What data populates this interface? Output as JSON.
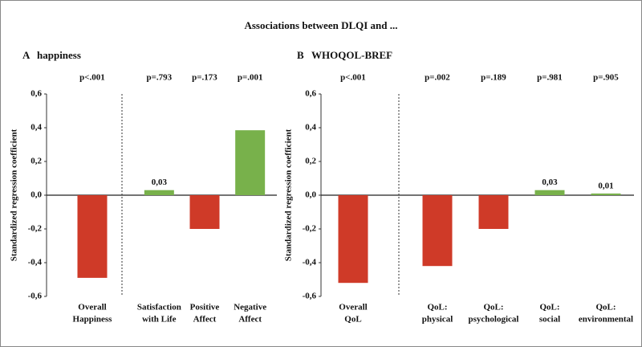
{
  "title": "Associations between DLQI and ...",
  "chart_data": [
    {
      "type": "bar",
      "panel": "A",
      "title": "happiness",
      "ylabel": "Standardized regression coefficient",
      "categories": [
        [
          "Overall",
          "Happiness"
        ],
        [
          "Satisfaction",
          "with Life"
        ],
        [
          "Positive",
          "Affect"
        ],
        [
          "Negative",
          "Affect"
        ]
      ],
      "annotations": [
        "p<.001",
        "p=.793",
        "p=.173",
        "p=.001"
      ],
      "values": [
        -0.49,
        0.03,
        -0.2,
        0.385
      ],
      "value_labels": [
        null,
        "0,03",
        null,
        null
      ],
      "colors": [
        "#cf3a28",
        "#78b14b",
        "#cf3a28",
        "#78b14b"
      ],
      "ylim": [
        -0.6,
        0.6
      ],
      "yticks": [
        {
          "value": -0.6,
          "label": "-0,6"
        },
        {
          "value": -0.4,
          "label": "-0,4"
        },
        {
          "value": -0.2,
          "label": "-0,2"
        },
        {
          "value": 0,
          "label": "0,0"
        },
        {
          "value": 0.2,
          "label": "0,2"
        },
        {
          "value": 0.4,
          "label": "0,4"
        },
        {
          "value": 0.6,
          "label": "0,6"
        }
      ]
    },
    {
      "type": "bar",
      "panel": "B",
      "title": "WHOQOL-BREF",
      "ylabel": "Standardized regression coefficient",
      "categories": [
        [
          "Overall",
          "QoL"
        ],
        [
          "QoL:",
          "physical"
        ],
        [
          "QoL:",
          "psychological"
        ],
        [
          "QoL:",
          "social"
        ],
        [
          "QoL:",
          "environmental"
        ]
      ],
      "annotations": [
        "p<.001",
        "p=.002",
        "p=.189",
        "p=.981",
        "p=.905"
      ],
      "values": [
        -0.52,
        -0.42,
        -0.2,
        0.03,
        0.01
      ],
      "value_labels": [
        null,
        null,
        null,
        "0,03",
        "0,01"
      ],
      "colors": [
        "#cf3a28",
        "#cf3a28",
        "#cf3a28",
        "#78b14b",
        "#78b14b"
      ],
      "ylim": [
        -0.6,
        0.6
      ],
      "yticks": [
        {
          "value": -0.6,
          "label": "-0,6"
        },
        {
          "value": -0.4,
          "label": "-0,4"
        },
        {
          "value": -0.2,
          "label": "-0,2"
        },
        {
          "value": 0,
          "label": "0,0"
        },
        {
          "value": 0.2,
          "label": "0,2"
        },
        {
          "value": 0.4,
          "label": "0,4"
        },
        {
          "value": 0.6,
          "label": "0,6"
        }
      ]
    }
  ]
}
